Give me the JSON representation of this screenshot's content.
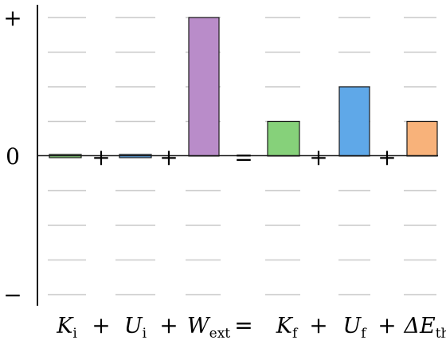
{
  "chart_data": {
    "type": "bar",
    "title": "",
    "xlabel": "",
    "ylabel": "",
    "ylim": [
      -4,
      4
    ],
    "grid": true,
    "y_tick_labels": [
      {
        "value": 4,
        "text": "+"
      },
      {
        "value": 0,
        "text": "0"
      },
      {
        "value": -4,
        "text": "−"
      }
    ],
    "categories": [
      {
        "symbol": "K",
        "sub": "i"
      },
      {
        "symbol": "U",
        "sub": "i"
      },
      {
        "symbol": "W",
        "sub": "ext"
      },
      {
        "symbol": "K",
        "sub": "f"
      },
      {
        "symbol": "U",
        "sub": "f"
      },
      {
        "symbol": "ΔE",
        "sub": "th"
      }
    ],
    "values": [
      0,
      0,
      4,
      1,
      2,
      1
    ],
    "colors": [
      "#86d17a",
      "#5fa8e8",
      "#b98cc9",
      "#86d17a",
      "#5fa8e8",
      "#f8b27a"
    ],
    "operators": [
      "+",
      "+",
      "=",
      "+",
      "+"
    ]
  }
}
